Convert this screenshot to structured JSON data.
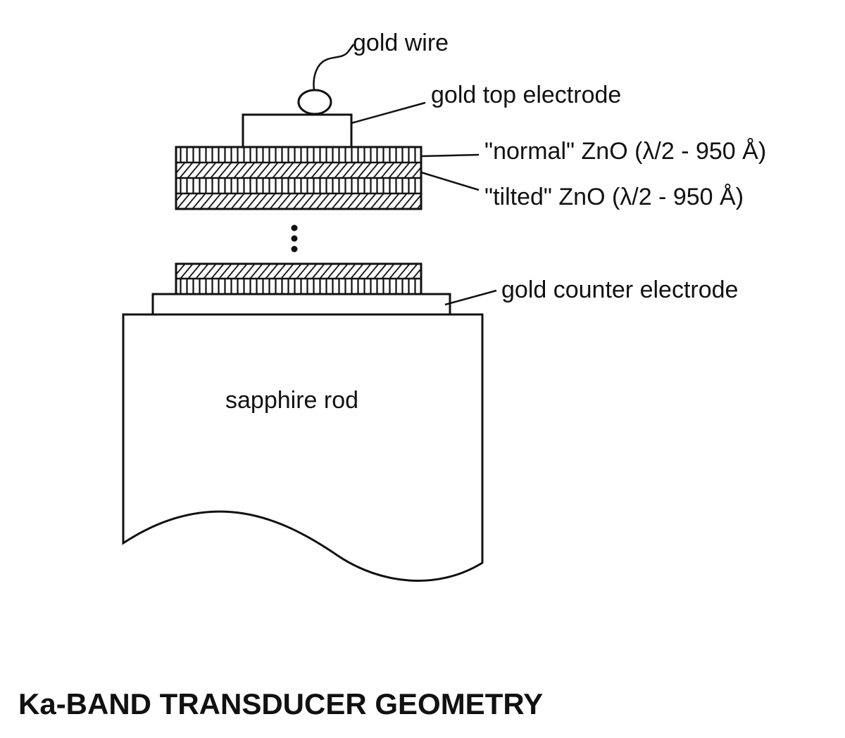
{
  "labels": {
    "gold_wire": "gold wire",
    "top_electrode": "gold top electrode",
    "normal_zno": "\"normal\" ZnO (λ/2 - 950 Å)",
    "tilted_zno": "\"tilted\" ZnO (λ/2 - 950 Å)",
    "counter_electrode": "gold counter electrode",
    "sapphire_rod": "sapphire rod"
  },
  "caption": "Ka-BAND TRANSDUCER GEOMETRY",
  "colors": {
    "ink": "#111111",
    "background": "#ffffff"
  }
}
